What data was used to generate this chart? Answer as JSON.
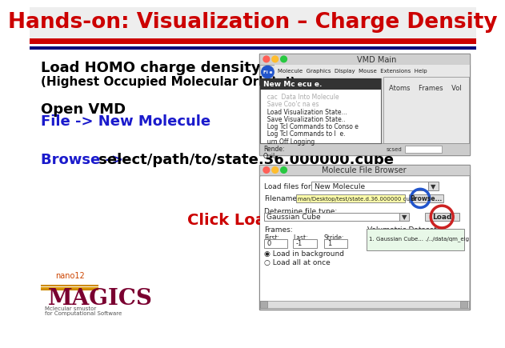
{
  "title": "Hands-on: Visualization – Charge Density",
  "title_color": "#cc0000",
  "title_fontsize": 19,
  "bg_color": "#ffffff",
  "stripe_red": "#cc0000",
  "stripe_blue": "#00007a",
  "text_black": "#000000",
  "text_blue": "#1a1acc",
  "text_red": "#cc0000",
  "line1": "Load HOMO charge density",
  "line2": "(Highest Occupied Molecular Orbital)",
  "line3": "Open VMD",
  "line4": "File -> New Molecule",
  "line5_a": "Browse ->",
  "line5_b": " select/path/to/state.36.000000.cube",
  "line6": "Click Load",
  "vmd_title": "VMD Main",
  "vmd_menu": "Molecule  Graphics  Display  Mouse  Extensions  Help",
  "vmd_menu_items": [
    "New Mc ecu e.",
    "  cac  Data Into Molecule",
    "  Save Coo'c na es",
    "  Load Visualization State...",
    "  Save Visualization State..",
    "  Log Tcl Commands to Conso e",
    "  Log Tcl Commands to l  e.",
    "  urn Off Logging",
    "Rende:",
    "Quil"
  ],
  "browser_title": "Molecule File Browser",
  "load_files_label": "Load files for:",
  "load_files_value": "New Molecule",
  "filename_label": "Filename:",
  "filename_value": "man/Desktop/test/state.d.36.000000 cube",
  "filetype_label": "Determine file type:",
  "filetype_value": "Gaussian Cube",
  "frames_label": "Frames:",
  "first_label": "First:",
  "last_label": "Last:",
  "stride_label": "Stride:",
  "first_val": "0",
  "last_val": "-1",
  "stride_val": "1",
  "vol_label": "Volumetric Datasets",
  "vol_item": "1. Gaussian Cube... ./../data/qm_eig",
  "radio1": "◉ Load in background",
  "radio2": "○ Load all at once",
  "browse_btn": "Browse...",
  "load_btn": "Load",
  "atoms_label": "Atoms    Frames    Vol"
}
